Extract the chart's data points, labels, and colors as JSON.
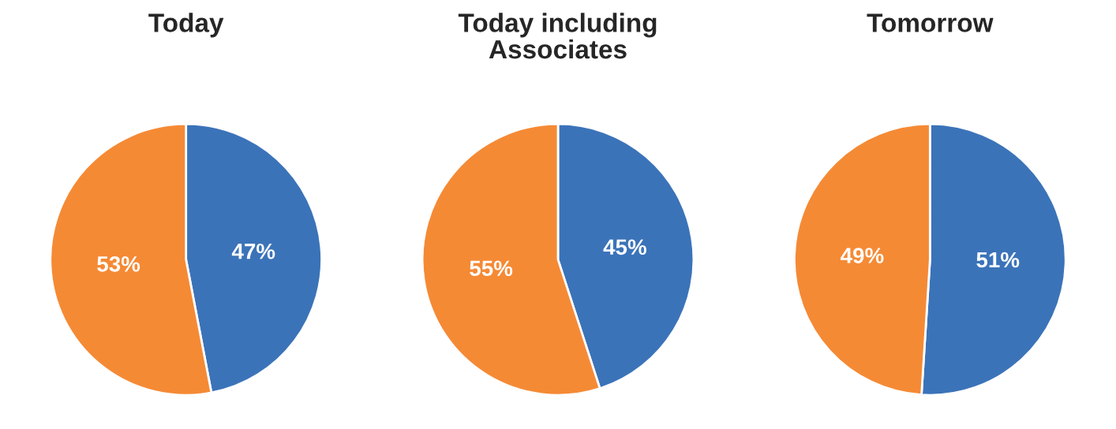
{
  "chart_data": [
    {
      "type": "pie",
      "title": "Today",
      "categories": [
        null,
        null
      ],
      "values": [
        47,
        53
      ],
      "colors": [
        "#3b73b9",
        "#f58a35"
      ],
      "value_labels": [
        "47%",
        "53%"
      ]
    },
    {
      "type": "pie",
      "title": "Today including\nAssociates",
      "categories": [
        null,
        null
      ],
      "values": [
        45,
        55
      ],
      "colors": [
        "#3b73b9",
        "#f58a35"
      ],
      "value_labels": [
        "45%",
        "55%"
      ]
    },
    {
      "type": "pie",
      "title": "Tomorrow",
      "categories": [
        null,
        null
      ],
      "values": [
        51,
        49
      ],
      "colors": [
        "#3b73b9",
        "#f58a35"
      ],
      "value_labels": [
        "51%",
        "49%"
      ]
    }
  ]
}
